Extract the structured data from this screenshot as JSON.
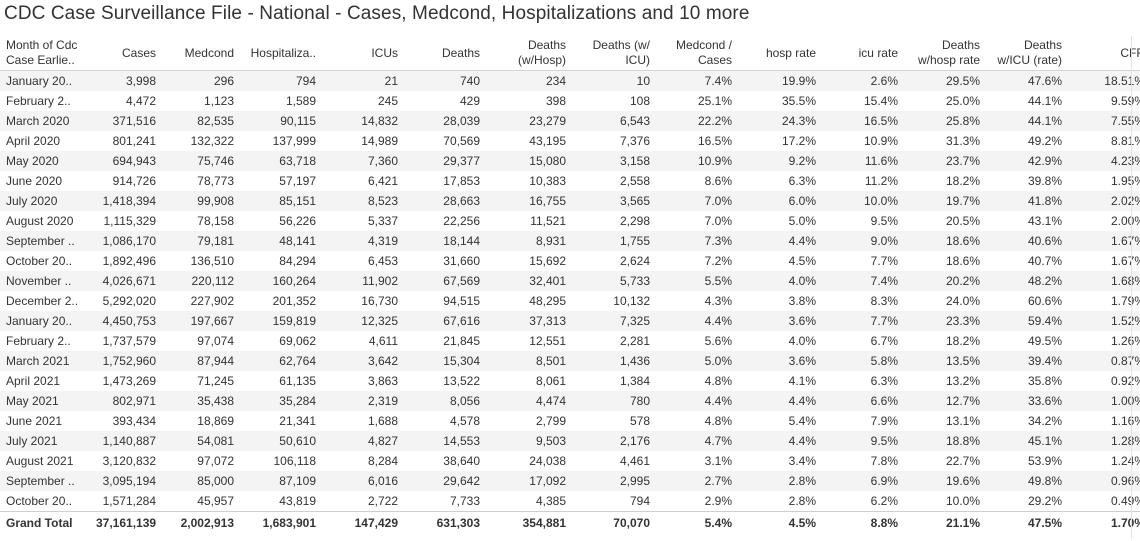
{
  "title": "CDC Case Surveillance File - National - Cases, Medcond, Hospitalizations and 10 more",
  "columns": [
    "Month of Cdc\nCase Earlie..",
    "Cases",
    "Medcond",
    "Hospitaliza..",
    "ICUs",
    "Deaths",
    "Deaths\n(w/Hosp)",
    "Deaths (w/\nICU)",
    "Medcond /\nCases",
    "hosp rate",
    "icu rate",
    "Deaths\nw/hosp rate",
    "Deaths\nw/ICU (rate)",
    "CFR"
  ],
  "rows": [
    [
      "January 20..",
      "3,998",
      "296",
      "794",
      "21",
      "740",
      "234",
      "10",
      "7.4%",
      "19.9%",
      "2.6%",
      "29.5%",
      "47.6%",
      "18.51%"
    ],
    [
      "February 2..",
      "4,472",
      "1,123",
      "1,589",
      "245",
      "429",
      "398",
      "108",
      "25.1%",
      "35.5%",
      "15.4%",
      "25.0%",
      "44.1%",
      "9.59%"
    ],
    [
      "March 2020",
      "371,516",
      "82,535",
      "90,115",
      "14,832",
      "28,039",
      "23,279",
      "6,543",
      "22.2%",
      "24.3%",
      "16.5%",
      "25.8%",
      "44.1%",
      "7.55%"
    ],
    [
      "April 2020",
      "801,241",
      "132,322",
      "137,999",
      "14,989",
      "70,569",
      "43,195",
      "7,376",
      "16.5%",
      "17.2%",
      "10.9%",
      "31.3%",
      "49.2%",
      "8.81%"
    ],
    [
      "May 2020",
      "694,943",
      "75,746",
      "63,718",
      "7,360",
      "29,377",
      "15,080",
      "3,158",
      "10.9%",
      "9.2%",
      "11.6%",
      "23.7%",
      "42.9%",
      "4.23%"
    ],
    [
      "June 2020",
      "914,726",
      "78,773",
      "57,197",
      "6,421",
      "17,853",
      "10,383",
      "2,558",
      "8.6%",
      "6.3%",
      "11.2%",
      "18.2%",
      "39.8%",
      "1.95%"
    ],
    [
      "July 2020",
      "1,418,394",
      "99,908",
      "85,151",
      "8,523",
      "28,663",
      "16,755",
      "3,565",
      "7.0%",
      "6.0%",
      "10.0%",
      "19.7%",
      "41.8%",
      "2.02%"
    ],
    [
      "August 2020",
      "1,115,329",
      "78,158",
      "56,226",
      "5,337",
      "22,256",
      "11,521",
      "2,298",
      "7.0%",
      "5.0%",
      "9.5%",
      "20.5%",
      "43.1%",
      "2.00%"
    ],
    [
      "September ..",
      "1,086,170",
      "79,181",
      "48,141",
      "4,319",
      "18,144",
      "8,931",
      "1,755",
      "7.3%",
      "4.4%",
      "9.0%",
      "18.6%",
      "40.6%",
      "1.67%"
    ],
    [
      "October 20..",
      "1,892,496",
      "136,510",
      "84,294",
      "6,453",
      "31,660",
      "15,692",
      "2,624",
      "7.2%",
      "4.5%",
      "7.7%",
      "18.6%",
      "40.7%",
      "1.67%"
    ],
    [
      "November ..",
      "4,026,671",
      "220,112",
      "160,264",
      "11,902",
      "67,569",
      "32,401",
      "5,733",
      "5.5%",
      "4.0%",
      "7.4%",
      "20.2%",
      "48.2%",
      "1.68%"
    ],
    [
      "December 2..",
      "5,292,020",
      "227,902",
      "201,352",
      "16,730",
      "94,515",
      "48,295",
      "10,132",
      "4.3%",
      "3.8%",
      "8.3%",
      "24.0%",
      "60.6%",
      "1.79%"
    ],
    [
      "January 20..",
      "4,450,753",
      "197,667",
      "159,819",
      "12,325",
      "67,616",
      "37,313",
      "7,325",
      "4.4%",
      "3.6%",
      "7.7%",
      "23.3%",
      "59.4%",
      "1.52%"
    ],
    [
      "February 2..",
      "1,737,579",
      "97,074",
      "69,062",
      "4,611",
      "21,845",
      "12,551",
      "2,281",
      "5.6%",
      "4.0%",
      "6.7%",
      "18.2%",
      "49.5%",
      "1.26%"
    ],
    [
      "March 2021",
      "1,752,960",
      "87,944",
      "62,764",
      "3,642",
      "15,304",
      "8,501",
      "1,436",
      "5.0%",
      "3.6%",
      "5.8%",
      "13.5%",
      "39.4%",
      "0.87%"
    ],
    [
      "April 2021",
      "1,473,269",
      "71,245",
      "61,135",
      "3,863",
      "13,522",
      "8,061",
      "1,384",
      "4.8%",
      "4.1%",
      "6.3%",
      "13.2%",
      "35.8%",
      "0.92%"
    ],
    [
      "May 2021",
      "802,971",
      "35,438",
      "35,284",
      "2,319",
      "8,056",
      "4,474",
      "780",
      "4.4%",
      "4.4%",
      "6.6%",
      "12.7%",
      "33.6%",
      "1.00%"
    ],
    [
      "June 2021",
      "393,434",
      "18,869",
      "21,341",
      "1,688",
      "4,578",
      "2,799",
      "578",
      "4.8%",
      "5.4%",
      "7.9%",
      "13.1%",
      "34.2%",
      "1.16%"
    ],
    [
      "July 2021",
      "1,140,887",
      "54,081",
      "50,610",
      "4,827",
      "14,553",
      "9,503",
      "2,176",
      "4.7%",
      "4.4%",
      "9.5%",
      "18.8%",
      "45.1%",
      "1.28%"
    ],
    [
      "August 2021",
      "3,120,832",
      "97,072",
      "106,118",
      "8,284",
      "38,640",
      "24,038",
      "4,461",
      "3.1%",
      "3.4%",
      "7.8%",
      "22.7%",
      "53.9%",
      "1.24%"
    ],
    [
      "September ..",
      "3,095,194",
      "85,000",
      "87,109",
      "6,016",
      "29,642",
      "17,092",
      "2,995",
      "2.7%",
      "2.8%",
      "6.9%",
      "19.6%",
      "49.8%",
      "0.96%"
    ],
    [
      "October 20..",
      "1,571,284",
      "45,957",
      "43,819",
      "2,722",
      "7,733",
      "4,385",
      "794",
      "2.9%",
      "2.8%",
      "6.2%",
      "10.0%",
      "29.2%",
      "0.49%"
    ]
  ],
  "total": [
    "Grand Total",
    "37,161,139",
    "2,002,913",
    "1,683,901",
    "147,429",
    "631,303",
    "354,881",
    "70,070",
    "5.4%",
    "4.5%",
    "8.8%",
    "21.1%",
    "47.5%",
    "1.70%"
  ],
  "colors": {
    "band_row": "#f4f4f4",
    "text": "#333333",
    "divider": "#d4d4d4"
  }
}
